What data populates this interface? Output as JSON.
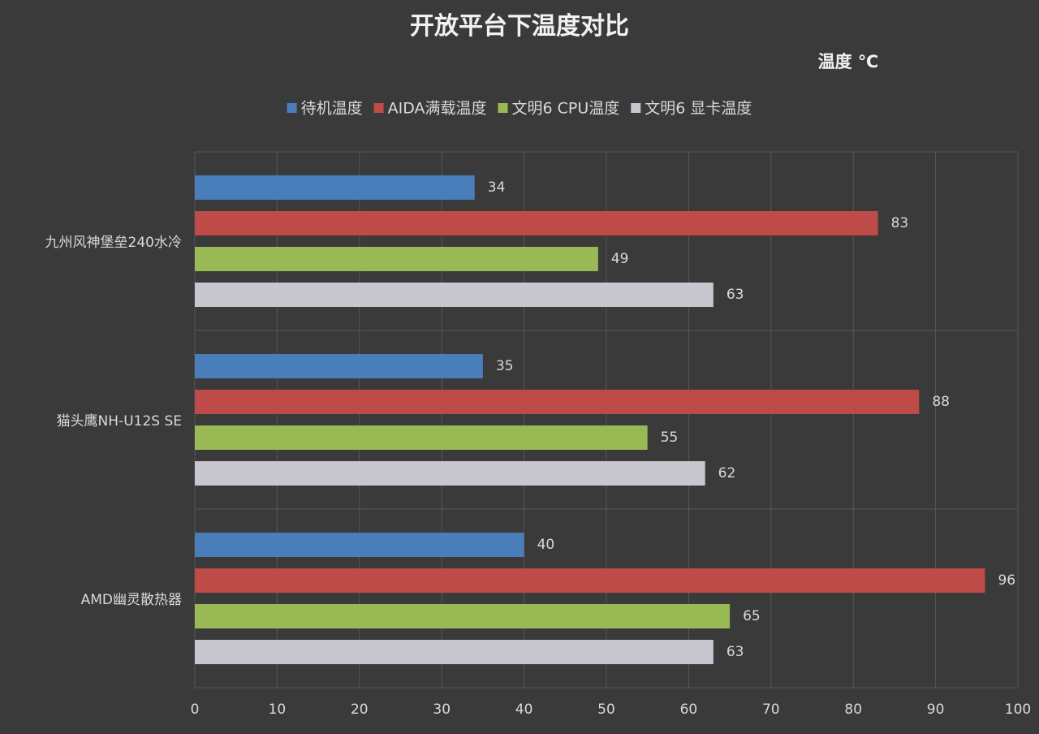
{
  "chart_data": {
    "type": "bar",
    "orientation": "horizontal",
    "title": "开放平台下温度对比",
    "annotation": "温度 ℃",
    "categories": [
      "九州风神堡垒240水冷",
      "猫头鹰NH-U12S SE",
      "AMD幽灵散热器"
    ],
    "series": [
      {
        "name": "待机温度",
        "color": "#4a7ebb",
        "values": [
          34,
          35,
          40
        ]
      },
      {
        "name": "AIDA满载温度",
        "color": "#be4b48",
        "values": [
          83,
          88,
          96
        ]
      },
      {
        "name": "文明6 CPU温度",
        "color": "#98b954",
        "values": [
          49,
          55,
          65
        ]
      },
      {
        "name": "文明6 显卡温度",
        "color": "#c8c6cf",
        "values": [
          63,
          62,
          63
        ]
      }
    ],
    "xlim": [
      0,
      100
    ],
    "xticks": [
      0,
      10,
      20,
      30,
      40,
      50,
      60,
      70,
      80,
      90,
      100
    ],
    "grid": true,
    "legend": "top"
  }
}
